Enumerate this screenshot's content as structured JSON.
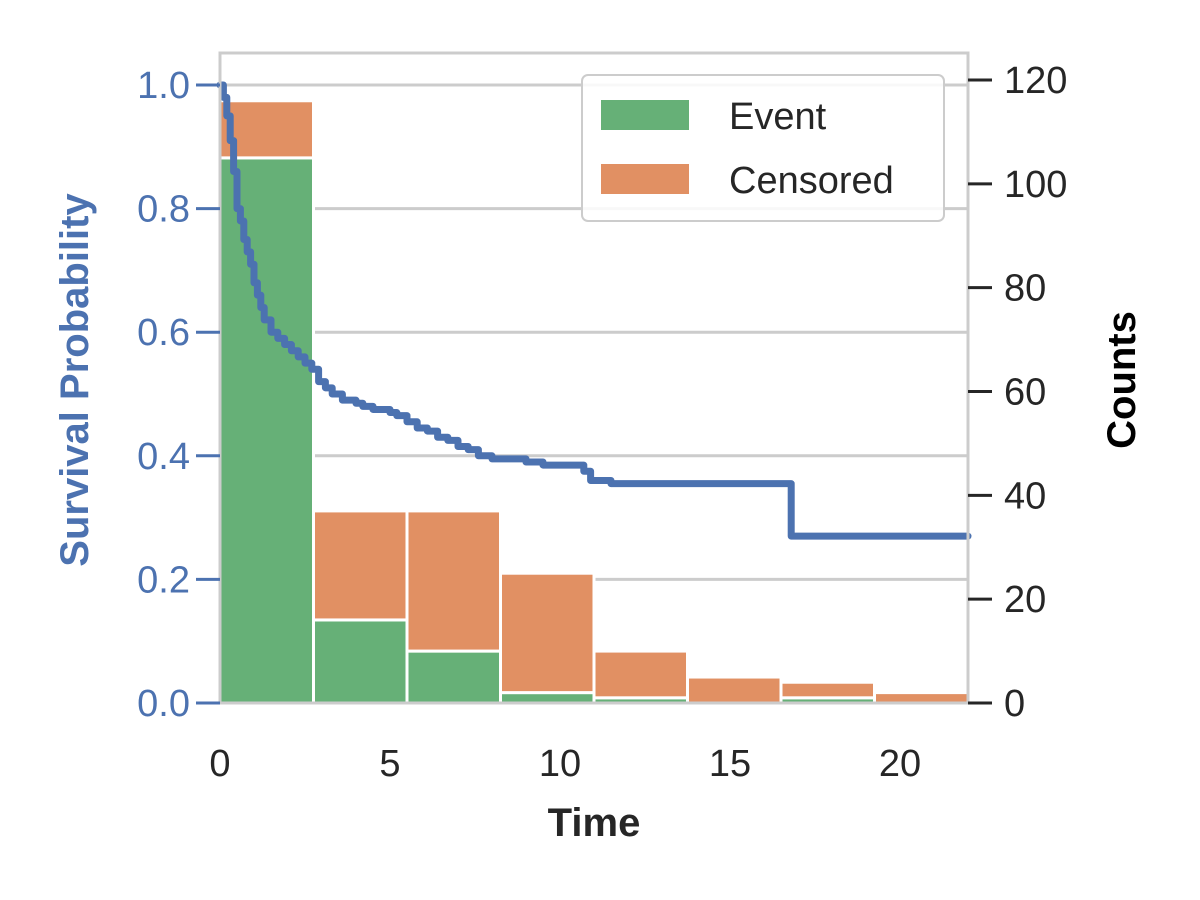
{
  "chart_data": {
    "type": "bar+line",
    "xlabel": "Time",
    "ylabel_left": "Survival Probability",
    "ylabel_right": "Counts",
    "xlim": [
      0,
      22
    ],
    "ylim_left": [
      0,
      1.05
    ],
    "ylim_right": [
      0,
      120
    ],
    "x_ticks": [
      0,
      5,
      10,
      15,
      20
    ],
    "y_left_ticks": [
      "0.0",
      "0.2",
      "0.4",
      "0.6",
      "0.8",
      "1.0"
    ],
    "y_right_ticks": [
      "0",
      "20",
      "40",
      "60",
      "80",
      "100",
      "120"
    ],
    "grid": true,
    "legend_position": "top-right",
    "histogram": {
      "bin_edges": [
        0,
        2.75,
        5.5,
        8.25,
        11,
        13.75,
        16.5,
        19.25,
        22
      ],
      "series": [
        {
          "name": "Event",
          "color": "#66b077",
          "values": [
            105,
            16,
            10,
            2,
            1,
            0,
            1,
            0
          ]
        },
        {
          "name": "Censored",
          "color": "#e19063",
          "values": [
            11,
            21,
            27,
            23,
            9,
            5,
            3,
            2
          ]
        }
      ]
    },
    "survival_curve": {
      "color": "#4c72b0",
      "x": [
        0,
        0.1,
        0.2,
        0.3,
        0.4,
        0.5,
        0.6,
        0.7,
        0.8,
        0.9,
        1.0,
        1.1,
        1.2,
        1.3,
        1.5,
        1.7,
        1.9,
        2.1,
        2.3,
        2.5,
        2.7,
        2.9,
        3.1,
        3.3,
        3.6,
        4.0,
        4.2,
        4.5,
        5.0,
        5.2,
        5.5,
        5.8,
        6.1,
        6.4,
        6.7,
        7.0,
        7.3,
        7.6,
        8.0,
        8.5,
        9.0,
        9.5,
        10.0,
        10.7,
        10.9,
        11.5,
        13.0,
        15.0,
        16.8,
        16.8,
        17.5,
        20.0,
        22.0
      ],
      "y": [
        1.0,
        0.98,
        0.95,
        0.91,
        0.86,
        0.8,
        0.78,
        0.75,
        0.73,
        0.71,
        0.68,
        0.66,
        0.64,
        0.62,
        0.6,
        0.59,
        0.58,
        0.57,
        0.56,
        0.55,
        0.54,
        0.52,
        0.51,
        0.5,
        0.49,
        0.485,
        0.48,
        0.475,
        0.47,
        0.465,
        0.455,
        0.445,
        0.44,
        0.43,
        0.425,
        0.415,
        0.41,
        0.4,
        0.395,
        0.395,
        0.39,
        0.385,
        0.385,
        0.375,
        0.36,
        0.355,
        0.355,
        0.355,
        0.355,
        0.27,
        0.27,
        0.27,
        0.27
      ]
    },
    "colors": {
      "survival_axis": "#4c72b0",
      "grid": "#cccccc",
      "frame": "#cccccc",
      "text": "#262626"
    }
  }
}
